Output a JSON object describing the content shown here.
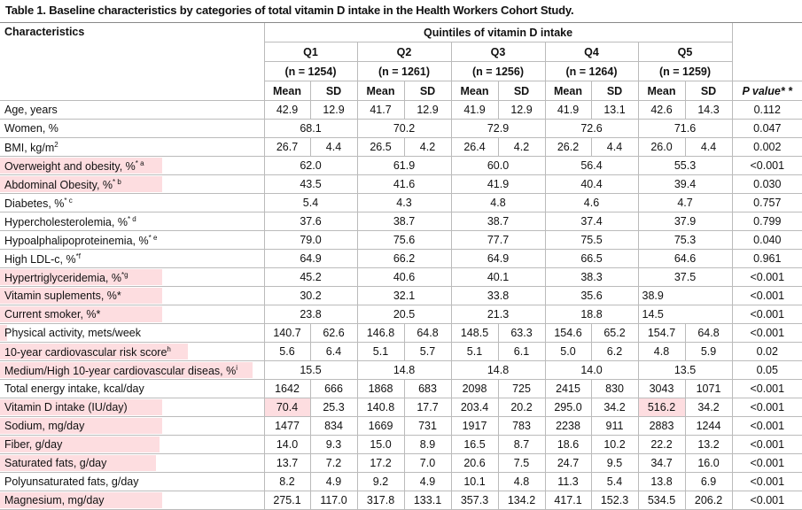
{
  "title": "Table 1.  Baseline characteristics by categories of total vitamin D intake in the Health Workers Cohort Study.",
  "header": {
    "characteristics": "Characteristics",
    "quintiles": "Quintiles of vitamin D intake",
    "groups": [
      {
        "q": "Q1",
        "n": "(n = 1254)"
      },
      {
        "q": "Q2",
        "n": "(n = 1261)"
      },
      {
        "q": "Q3",
        "n": "(n = 1256)"
      },
      {
        "q": "Q4",
        "n": "(n = 1264)"
      },
      {
        "q": "Q5",
        "n": "(n = 1259)"
      }
    ],
    "mean": "Mean",
    "sd": "SD",
    "p_value": "P value",
    "p_value_mark": "* *"
  },
  "rows": [
    {
      "label": "Age, years",
      "sup": "",
      "values": [
        "42.9",
        "12.9",
        "41.7",
        "12.9",
        "41.9",
        "12.9",
        "41.9",
        "13.1",
        "42.6",
        "14.3"
      ],
      "p": "0.112"
    },
    {
      "label": "Women, %",
      "sup": "",
      "values": [
        "68.1",
        "70.2",
        "72.9",
        "72.6",
        "71.6"
      ],
      "p": "0.047"
    },
    {
      "label": "BMI, kg/m",
      "sup": "2",
      "values": [
        "26.7",
        "4.4",
        "26.5",
        "4.2",
        "26.4",
        "4.2",
        "26.2",
        "4.4",
        "26.0",
        "4.4"
      ],
      "p": "0.002"
    },
    {
      "label": "Overweight and obesity, %",
      "sup": "* a",
      "values": [
        "62.0",
        "61.9",
        "60.0",
        "56.4",
        "55.3"
      ],
      "p": "<0.001"
    },
    {
      "label": "Abdominal Obesity, %",
      "sup": "* b",
      "values": [
        "43.5",
        "41.6",
        "41.9",
        "40.4",
        "39.4"
      ],
      "p": "0.030"
    },
    {
      "label": "Diabetes, %",
      "sup": "* c",
      "values": [
        "5.4",
        "4.3",
        "4.8",
        "4.6",
        "4.7"
      ],
      "p": "0.757"
    },
    {
      "label": "Hypercholesterolemia, %",
      "sup": "* d",
      "values": [
        "37.6",
        "38.7",
        "38.7",
        "37.4",
        "37.9"
      ],
      "p": "0.799"
    },
    {
      "label": "Hypoalphalipoproteinemia, %",
      "sup": "* e",
      "values": [
        "79.0",
        "75.6",
        "77.7",
        "75.5",
        "75.3"
      ],
      "p": "0.040"
    },
    {
      "label": "High LDL-c, %",
      "sup": "*f",
      "values": [
        "64.9",
        "66.2",
        "64.9",
        "66.5",
        "64.6"
      ],
      "p": "0.961"
    },
    {
      "label": "Hypertriglyceridemia, %",
      "sup": "*g",
      "values": [
        "45.2",
        "40.6",
        "40.1",
        "38.3",
        "37.5"
      ],
      "p": "<0.001"
    },
    {
      "label": "Vitamin suplements, %*",
      "sup": "",
      "values": [
        "30.2",
        "32.1",
        "33.8",
        "35.6",
        "38.9"
      ],
      "p": "<0.001"
    },
    {
      "label": "Current smoker, %*",
      "sup": "",
      "values": [
        "23.8",
        "20.5",
        "21.3",
        "18.8",
        "14.5"
      ],
      "p": "<0.001"
    },
    {
      "label": "Physical activity, mets/week",
      "sup": "",
      "values": [
        "140.7",
        "62.6",
        "146.8",
        "64.8",
        "148.5",
        "63.3",
        "154.6",
        "65.2",
        "154.7",
        "64.8"
      ],
      "p": "<0.001"
    },
    {
      "label": "10-year cardiovascular risk score",
      "sup": "h",
      "values": [
        "5.6",
        "6.4",
        "5.1",
        "5.7",
        "5.1",
        "6.1",
        "5.0",
        "6.2",
        "4.8",
        "5.9"
      ],
      "p": "0.02"
    },
    {
      "label": "Medium/High 10-year cardiovascular diseas, %",
      "sup": "i",
      "values": [
        "15.5",
        "14.8",
        "14.8",
        "14.0",
        "13.5"
      ],
      "p": "0.05"
    },
    {
      "label": "Total energy intake, kcal/day",
      "sup": "",
      "values": [
        "1642",
        "666",
        "1868",
        "683",
        "2098",
        "725",
        "2415",
        "830",
        "3043",
        "1071"
      ],
      "p": "<0.001"
    },
    {
      "label": "Vitamin D intake (IU/day)",
      "sup": "",
      "values": [
        "70.4",
        "25.3",
        "140.8",
        "17.7",
        "203.4",
        "20.2",
        "295.0",
        "34.2",
        "516.2",
        "34.2"
      ],
      "p": "<0.001"
    },
    {
      "label": "Sodium, mg/day",
      "sup": "",
      "values": [
        "1477",
        "834",
        "1669",
        "731",
        "1917",
        "783",
        "2238",
        "911",
        "2883",
        "1244"
      ],
      "p": "<0.001"
    },
    {
      "label": "Fiber, g/day",
      "sup": "",
      "values": [
        "14.0",
        "9.3",
        "15.0",
        "8.9",
        "16.5",
        "8.7",
        "18.6",
        "10.2",
        "22.2",
        "13.2"
      ],
      "p": "<0.001"
    },
    {
      "label": "Saturated fats, g/day",
      "sup": "",
      "values": [
        "13.7",
        "7.2",
        "17.2",
        "7.0",
        "20.6",
        "7.5",
        "24.7",
        "9.5",
        "34.7",
        "16.0"
      ],
      "p": "<0.001"
    },
    {
      "label": "Polyunsaturated fats, g/day",
      "sup": "",
      "values": [
        "8.2",
        "4.9",
        "9.2",
        "4.9",
        "10.1",
        "4.8",
        "11.3",
        "5.4",
        "13.8",
        "6.9"
      ],
      "p": "<0.001"
    },
    {
      "label": "Magnesium, mg/day",
      "sup": "",
      "values": [
        "275.1",
        "117.0",
        "317.8",
        "133.1",
        "357.3",
        "134.2",
        "417.1",
        "152.3",
        "534.5",
        "206.2"
      ],
      "p": "<0.001"
    }
  ]
}
